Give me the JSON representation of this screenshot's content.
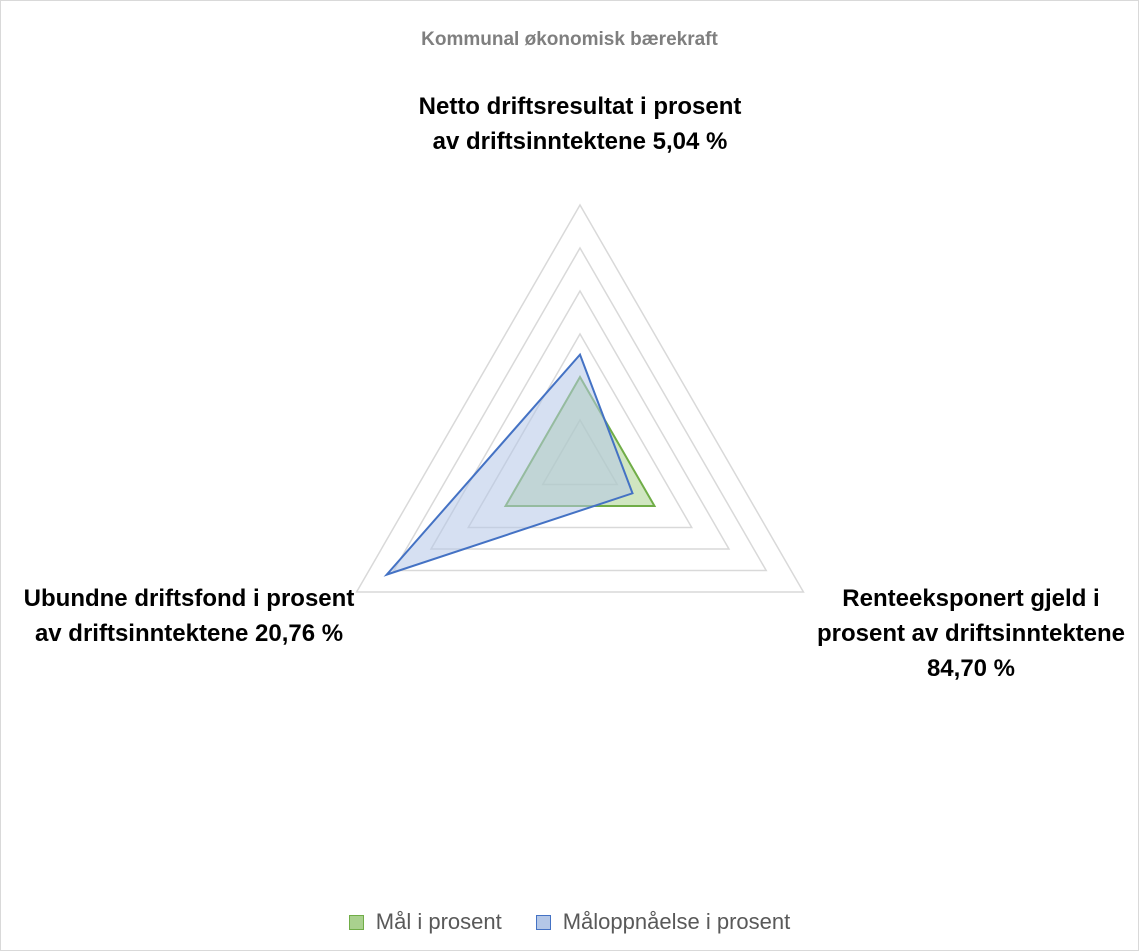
{
  "chart_data": {
    "type": "radar",
    "title": "Kommunal økonomisk bærekraft",
    "categories": [
      "Netto driftsresultat i prosent av driftsinntektene 5,04 %",
      "Renteeksponert gjeld i prosent av driftsinntektene 84,70 %",
      "Ubundne driftsfond i prosent av driftsinntektene 20,76 %"
    ],
    "series": [
      {
        "name": "Mål i prosent",
        "values": [
          2,
          2,
          2
        ],
        "line_color": "#70ad47",
        "fill_color": "#a9d18e"
      },
      {
        "name": "Måloppnåelse i prosent",
        "values": [
          2.52,
          1.41,
          5.19
        ],
        "line_color": "#4472c4",
        "fill_color": "#b4c7e7"
      }
    ],
    "r_range": [
      0,
      6
    ],
    "r_major_unit": 1,
    "grid": true,
    "grid_color": "#d9d9d9",
    "legend_position": "bottom"
  }
}
